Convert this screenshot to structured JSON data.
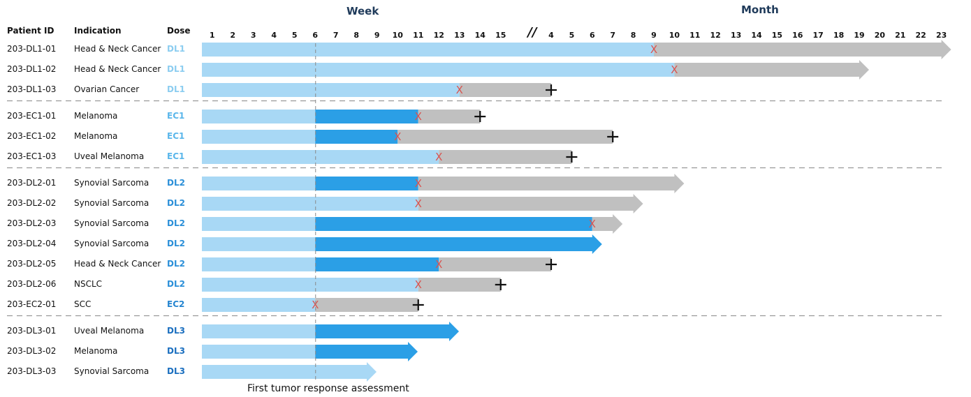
{
  "headers": {
    "patient_id": "Patient ID",
    "indication": "Indication",
    "dose": "Dose"
  },
  "period_labels": {
    "week": "Week",
    "month": "Month"
  },
  "axis": {
    "week_ticks": [
      "1",
      "2",
      "3",
      "4",
      "5",
      "6",
      "7",
      "8",
      "9",
      "10",
      "11",
      "12",
      "13",
      "14",
      "15"
    ],
    "break_mark": "//",
    "month_ticks": [
      "4",
      "5",
      "6",
      "7",
      "8",
      "9",
      "10",
      "11",
      "12",
      "13",
      "14",
      "15",
      "16",
      "17",
      "18",
      "19",
      "20",
      "21",
      "22",
      "23"
    ]
  },
  "reference_line": {
    "label": "First tumor response assessment",
    "at_week": 6
  },
  "colors": {
    "light_blue": "#a8d8f5",
    "dark_blue": "#2b9fe6",
    "gray": "#c0c0c0",
    "progression_x": "#d9534f",
    "death_plus": "#111111",
    "dose_dl1": "#8ccdf0",
    "dose_ec1": "#5ab6ea",
    "dose_dl2": "#2b8fd8",
    "dose_ec2": "#2585d0",
    "dose_dl3": "#1b6fbf",
    "dashed_line": "#999999"
  },
  "chart_data": {
    "type": "swimmer",
    "units": {
      "weeks_first": "weeks 1-15",
      "then": "months 4-23"
    },
    "legend_encoding": {
      "light_blue": "on treatment",
      "dark_blue": "response period",
      "gray": "off treatment / follow-up",
      "X": "progression",
      "+": "death",
      "arrow": "ongoing"
    },
    "groups": [
      {
        "dose": "DL1",
        "patients": [
          {
            "id": "203-DL1-01",
            "indication": "Head & Neck Cancer",
            "segments": [
              {
                "color": "light_blue",
                "from": 0,
                "to": "month 9"
              },
              {
                "color": "gray",
                "from": "month 9",
                "to": "month 23"
              }
            ],
            "progression": "month 9",
            "death": null,
            "ongoing": true
          },
          {
            "id": "203-DL1-02",
            "indication": "Head & Neck Cancer",
            "segments": [
              {
                "color": "light_blue",
                "from": 0,
                "to": "month 10"
              },
              {
                "color": "gray",
                "from": "month 10",
                "to": "month 19"
              }
            ],
            "progression": "month 10",
            "death": null,
            "ongoing": true
          },
          {
            "id": "203-DL1-03",
            "indication": "Ovarian Cancer",
            "segments": [
              {
                "color": "light_blue",
                "from": 0,
                "to": "week 13"
              },
              {
                "color": "gray",
                "from": "week 13",
                "to": "month 4"
              }
            ],
            "progression": "week 13",
            "death": "month 4",
            "ongoing": false
          }
        ]
      },
      {
        "dose": "EC1",
        "patients": [
          {
            "id": "203-EC1-01",
            "indication": "Melanoma",
            "segments": [
              {
                "color": "light_blue",
                "from": 0,
                "to": "week 6"
              },
              {
                "color": "dark_blue",
                "from": "week 6",
                "to": "week 11"
              },
              {
                "color": "gray",
                "from": "week 11",
                "to": "week 14"
              }
            ],
            "progression": "week 11",
            "death": "week 14",
            "ongoing": false
          },
          {
            "id": "203-EC1-02",
            "indication": "Melanoma",
            "segments": [
              {
                "color": "light_blue",
                "from": 0,
                "to": "week 6"
              },
              {
                "color": "dark_blue",
                "from": "week 6",
                "to": "week 10"
              },
              {
                "color": "gray",
                "from": "week 10",
                "to": "month 7"
              }
            ],
            "progression": "week 10",
            "death": "month 7",
            "ongoing": false
          },
          {
            "id": "203-EC1-03",
            "indication": "Uveal Melanoma",
            "segments": [
              {
                "color": "light_blue",
                "from": 0,
                "to": "week 12"
              },
              {
                "color": "gray",
                "from": "week 12",
                "to": "month 5"
              }
            ],
            "progression": "week 12",
            "death": "month 5",
            "ongoing": false
          }
        ]
      },
      {
        "dose": "DL2",
        "patients": [
          {
            "id": "203-DL2-01",
            "indication": "Synovial Sarcoma",
            "segments": [
              {
                "color": "light_blue",
                "from": 0,
                "to": "week 6"
              },
              {
                "color": "dark_blue",
                "from": "week 6",
                "to": "week 11"
              },
              {
                "color": "gray",
                "from": "week 11",
                "to": "month 10"
              }
            ],
            "progression": "week 11",
            "death": null,
            "ongoing": true
          },
          {
            "id": "203-DL2-02",
            "indication": "Synovial Sarcoma",
            "segments": [
              {
                "color": "light_blue",
                "from": 0,
                "to": "week 11"
              },
              {
                "color": "gray",
                "from": "week 11",
                "to": "month 8"
              }
            ],
            "progression": "week 11",
            "death": null,
            "ongoing": true
          },
          {
            "id": "203-DL2-03",
            "indication": "Synovial Sarcoma",
            "segments": [
              {
                "color": "light_blue",
                "from": 0,
                "to": "week 6"
              },
              {
                "color": "dark_blue",
                "from": "week 6",
                "to": "month 6"
              },
              {
                "color": "gray",
                "from": "month 6",
                "to": "month 7"
              }
            ],
            "progression": "month 6",
            "death": null,
            "ongoing": true
          },
          {
            "id": "203-DL2-04",
            "indication": "Synovial Sarcoma",
            "segments": [
              {
                "color": "light_blue",
                "from": 0,
                "to": "week 6"
              },
              {
                "color": "dark_blue",
                "from": "week 6",
                "to": "month 6"
              }
            ],
            "progression": null,
            "death": null,
            "ongoing": true
          },
          {
            "id": "203-DL2-05",
            "indication": "Head & Neck Cancer",
            "segments": [
              {
                "color": "light_blue",
                "from": 0,
                "to": "week 6"
              },
              {
                "color": "dark_blue",
                "from": "week 6",
                "to": "week 12"
              },
              {
                "color": "gray",
                "from": "week 12",
                "to": "month 4"
              }
            ],
            "progression": "week 12",
            "death": "month 4",
            "ongoing": false
          },
          {
            "id": "203-DL2-06",
            "indication": "NSCLC",
            "segments": [
              {
                "color": "light_blue",
                "from": 0,
                "to": "week 11"
              },
              {
                "color": "gray",
                "from": "week 11",
                "to": "week 15"
              }
            ],
            "progression": "week 11",
            "death": "week 15",
            "ongoing": false
          }
        ]
      },
      {
        "dose": "EC2",
        "patients": [
          {
            "id": "203-EC2-01",
            "indication": "SCC",
            "segments": [
              {
                "color": "light_blue",
                "from": 0,
                "to": "week 6"
              },
              {
                "color": "gray",
                "from": "week 6",
                "to": "week 11"
              }
            ],
            "progression": "week 6",
            "death": "week 11",
            "ongoing": false
          }
        ]
      },
      {
        "dose": "DL3",
        "patients": [
          {
            "id": "203-DL3-01",
            "indication": "Uveal Melanoma",
            "segments": [
              {
                "color": "light_blue",
                "from": 0,
                "to": "week 6"
              },
              {
                "color": "dark_blue",
                "from": "week 6",
                "to": "week 12.5"
              }
            ],
            "progression": null,
            "death": null,
            "ongoing": true
          },
          {
            "id": "203-DL3-02",
            "indication": "Melanoma",
            "segments": [
              {
                "color": "light_blue",
                "from": 0,
                "to": "week 6"
              },
              {
                "color": "dark_blue",
                "from": "week 6",
                "to": "week 10.5"
              }
            ],
            "progression": null,
            "death": null,
            "ongoing": true
          },
          {
            "id": "203-DL3-03",
            "indication": "Synovial Sarcoma",
            "segments": [
              {
                "color": "light_blue",
                "from": 0,
                "to": "week 8.5"
              }
            ],
            "progression": null,
            "death": null,
            "ongoing": true
          }
        ]
      }
    ]
  }
}
